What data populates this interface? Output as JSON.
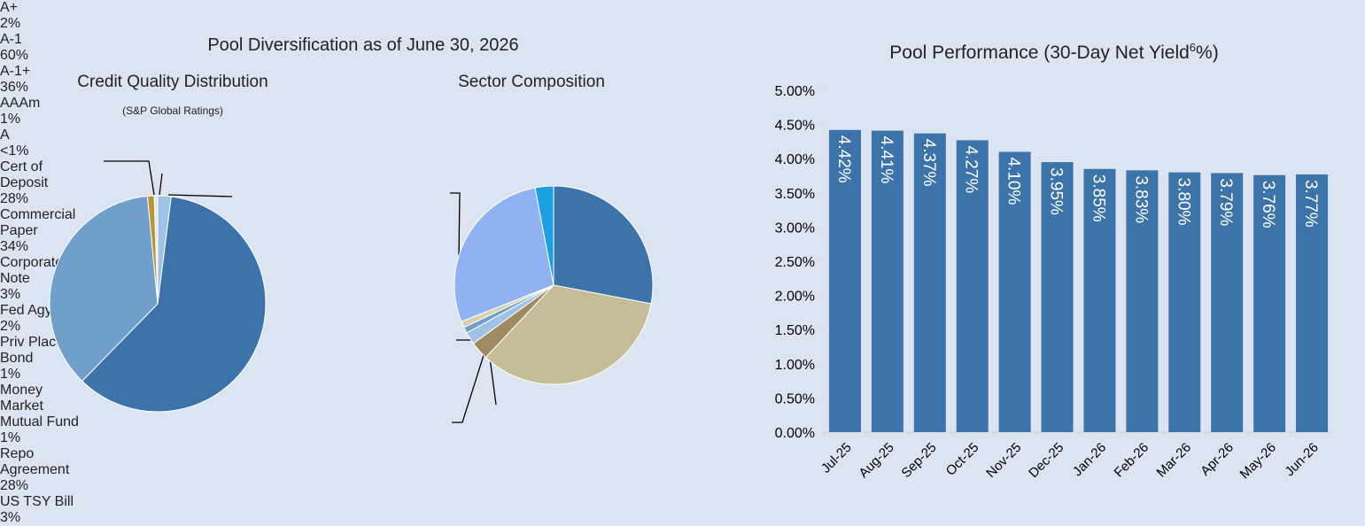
{
  "heading": "Pool Diversification as of June 30, 2026",
  "chart_data": [
    {
      "type": "pie",
      "title": "Credit Quality Distribution",
      "subtitle": "(S&P Global Ratings)",
      "categories": [
        "A+",
        "A-1",
        "A-1+",
        "AAAm",
        "A"
      ],
      "values": [
        2,
        60,
        36,
        1,
        0.5
      ],
      "value_labels": [
        "2%",
        "60%",
        "36%",
        "1%",
        "<1%"
      ],
      "colors": [
        "#9fc3e7",
        "#3c74aa",
        "#6f9fca",
        "#b8952f",
        "#dfe8f3"
      ]
    },
    {
      "type": "pie",
      "title": "Sector Composition",
      "categories": [
        "Cert of Deposit",
        "Commercial Paper",
        "Corporate Note",
        "Fed Agy DN",
        "Priv Placement Bond",
        "Money Market Mutual Fund",
        "Repo Agreement",
        "US TSY Bill"
      ],
      "values": [
        28,
        34,
        3,
        2,
        1,
        1,
        28,
        3
      ],
      "value_labels": [
        "28%",
        "34%",
        "3%",
        "2%",
        "1%",
        "1%",
        "28%",
        "3%"
      ],
      "colors": [
        "#3c74aa",
        "#c4bd97",
        "#a08a62",
        "#9fc3e7",
        "#6f9fca",
        "#d8d0a8",
        "#8fb3f2",
        "#1c9fe0"
      ]
    },
    {
      "type": "bar",
      "title": {
        "text": "Pool Performance (30-Day Net Yield",
        "superscript": "6",
        "end": "%)"
      },
      "categories": [
        "Jul-25",
        "Aug-25",
        "Sep-25",
        "Oct-25",
        "Nov-25",
        "Dec-25",
        "Jan-26",
        "Feb-26",
        "Mar-26",
        "Apr-26",
        "May-26",
        "Jun-26"
      ],
      "values": [
        4.42,
        4.41,
        4.37,
        4.27,
        4.1,
        3.95,
        3.85,
        3.83,
        3.8,
        3.79,
        3.76,
        3.77
      ],
      "value_labels": [
        "4.42%",
        "4.41%",
        "4.37%",
        "4.27%",
        "4.10%",
        "3.95%",
        "3.85%",
        "3.83%",
        "3.80%",
        "3.79%",
        "3.76%",
        "3.77%"
      ],
      "color": "#3c74aa",
      "ylim": [
        0,
        5
      ],
      "yticks": [
        {
          "value": 0,
          "label": "0.00%"
        },
        {
          "value": 0.5,
          "label": "0.50%"
        },
        {
          "value": 1,
          "label": "1.00%"
        },
        {
          "value": 1.5,
          "label": "1.50%"
        },
        {
          "value": 2,
          "label": "2.00%"
        },
        {
          "value": 2.5,
          "label": "2.50%"
        },
        {
          "value": 3,
          "label": "3.00%"
        },
        {
          "value": 3.5,
          "label": "3.50%"
        },
        {
          "value": 4,
          "label": "4.00%"
        },
        {
          "value": 4.5,
          "label": "4.50%"
        },
        {
          "value": 5,
          "label": "5.00%"
        }
      ]
    }
  ]
}
